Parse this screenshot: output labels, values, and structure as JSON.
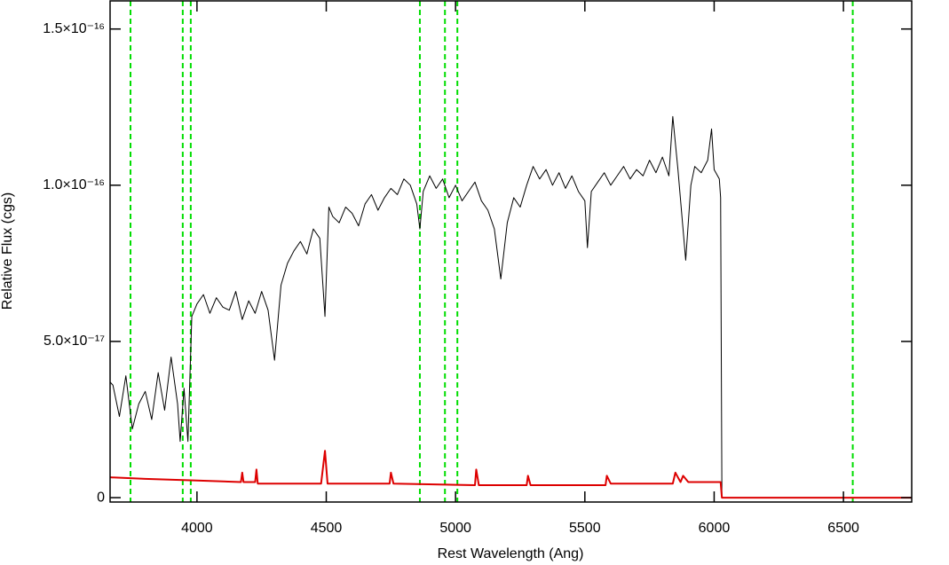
{
  "chart_data": {
    "type": "line",
    "xlabel": "Rest Wavelength (Ang)",
    "ylabel": "Relative Flux (cgs)",
    "xlim": [
      3664,
      6764
    ],
    "ylim": [
      -1.4e-18,
      1.59e-16
    ],
    "xticks": [
      4000,
      4500,
      5000,
      5500,
      6000,
      6500
    ],
    "yticks": [
      0,
      {
        "value": 5e-17,
        "label": "5.0×10⁻¹⁷"
      },
      {
        "value": 1e-16,
        "label": "1.0×10⁻¹⁶"
      },
      {
        "value": 1.5e-16,
        "label": "1.5×10⁻¹⁶"
      }
    ],
    "vlines": {
      "color": "#00dd00",
      "values": [
        3743,
        3945,
        3976,
        4862,
        4959,
        5007,
        6536
      ]
    },
    "series": [
      {
        "color": "#000000",
        "x": [
          3664,
          3675,
          3700,
          3725,
          3750,
          3775,
          3800,
          3825,
          3850,
          3875,
          3900,
          3925,
          3935,
          3950,
          3965,
          3980,
          4000,
          4025,
          4050,
          4075,
          4100,
          4125,
          4150,
          4175,
          4200,
          4225,
          4250,
          4275,
          4300,
          4325,
          4350,
          4375,
          4400,
          4425,
          4450,
          4475,
          4495,
          4510,
          4525,
          4550,
          4575,
          4600,
          4625,
          4650,
          4675,
          4700,
          4725,
          4750,
          4775,
          4800,
          4825,
          4850,
          4862,
          4875,
          4900,
          4925,
          4950,
          4975,
          5000,
          5025,
          5050,
          5075,
          5100,
          5125,
          5150,
          5175,
          5200,
          5225,
          5250,
          5275,
          5300,
          5325,
          5350,
          5375,
          5400,
          5425,
          5450,
          5475,
          5500,
          5510,
          5525,
          5550,
          5575,
          5600,
          5625,
          5650,
          5675,
          5700,
          5725,
          5750,
          5775,
          5800,
          5825,
          5840,
          5860,
          5890,
          5910,
          5925,
          5950,
          5975,
          5990,
          6000,
          6020,
          6025,
          6030,
          6764
        ],
        "values": [
          3.7e-17,
          3.6e-17,
          2.6e-17,
          3.9e-17,
          2.2e-17,
          3e-17,
          3.4e-17,
          2.5e-17,
          4e-17,
          2.8e-17,
          4.5e-17,
          3e-17,
          1.8e-17,
          3.5e-17,
          1.8e-17,
          5.8e-17,
          6.2e-17,
          6.5e-17,
          5.9e-17,
          6.4e-17,
          6.1e-17,
          6e-17,
          6.6e-17,
          5.7e-17,
          6.3e-17,
          5.9e-17,
          6.6e-17,
          6e-17,
          4.4e-17,
          6.8e-17,
          7.5e-17,
          7.9e-17,
          8.2e-17,
          7.8e-17,
          8.6e-17,
          8.3e-17,
          5.8e-17,
          9.3e-17,
          9e-17,
          8.8e-17,
          9.3e-17,
          9.1e-17,
          8.7e-17,
          9.4e-17,
          9.7e-17,
          9.2e-17,
          9.6e-17,
          9.9e-17,
          9.7e-17,
          1.02e-16,
          1e-16,
          9.4e-17,
          8.6e-17,
          9.8e-17,
          1.03e-16,
          9.9e-17,
          1.02e-16,
          9.6e-17,
          1e-16,
          9.5e-17,
          9.8e-17,
          1.01e-16,
          9.5e-17,
          9.2e-17,
          8.6e-17,
          7e-17,
          8.8e-17,
          9.6e-17,
          9.3e-17,
          1e-16,
          1.06e-16,
          1.02e-16,
          1.05e-16,
          1e-16,
          1.04e-16,
          9.9e-17,
          1.03e-16,
          9.8e-17,
          9.5e-17,
          8e-17,
          9.8e-17,
          1.01e-16,
          1.04e-16,
          1e-16,
          1.03e-16,
          1.06e-16,
          1.02e-16,
          1.05e-16,
          1.03e-16,
          1.08e-16,
          1.04e-16,
          1.09e-16,
          1.03e-16,
          1.22e-16,
          1.05e-16,
          7.6e-17,
          1e-16,
          1.06e-16,
          1.04e-16,
          1.08e-16,
          1.18e-16,
          1.05e-16,
          1.02e-16,
          9.6e-17,
          0,
          0
        ]
      },
      {
        "color": "#dd0000",
        "x": [
          3664,
          3800,
          4000,
          4170,
          4175,
          4180,
          4225,
          4230,
          4235,
          4480,
          4495,
          4505,
          4745,
          4750,
          4760,
          5075,
          5080,
          5090,
          5275,
          5280,
          5290,
          5500,
          5580,
          5585,
          5600,
          5840,
          5850,
          5870,
          5880,
          5900,
          6025,
          6030,
          6764
        ],
        "values": [
          6.5e-18,
          6e-18,
          5.5e-18,
          5e-18,
          8e-18,
          5e-18,
          5e-18,
          9e-18,
          4.5e-18,
          4.5e-18,
          1.5e-17,
          4.5e-18,
          4.5e-18,
          8e-18,
          4.5e-18,
          4e-18,
          9e-18,
          4e-18,
          4e-18,
          7e-18,
          4e-18,
          4e-18,
          4e-18,
          7e-18,
          4.5e-18,
          4.5e-18,
          8e-18,
          5e-18,
          7e-18,
          5e-18,
          5e-18,
          0,
          0
        ]
      }
    ]
  }
}
